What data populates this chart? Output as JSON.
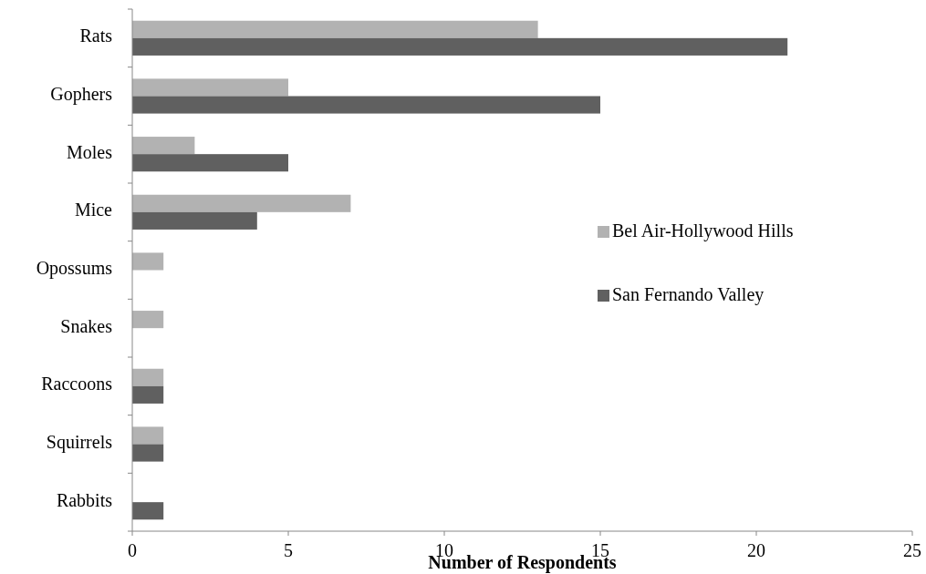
{
  "chart_data": {
    "type": "bar",
    "orientation": "horizontal",
    "xlabel": "Number of Respondents",
    "categories": [
      "Rats",
      "Gophers",
      "Moles",
      "Mice",
      "Opossums",
      "Snakes",
      "Raccoons",
      "Squirrels",
      "Rabbits"
    ],
    "series": [
      {
        "name": "Bel Air-Hollywood Hills",
        "color": "#b2b2b2",
        "values": [
          13,
          5,
          2,
          7,
          1,
          1,
          1,
          1,
          null
        ]
      },
      {
        "name": "San Fernando Valley",
        "color": "#606060",
        "values": [
          21,
          15,
          5,
          4,
          null,
          null,
          1,
          1,
          1
        ]
      }
    ],
    "xlim": [
      0,
      25
    ],
    "xticks": [
      0,
      5,
      10,
      15,
      20,
      25
    ],
    "grid": false,
    "legend": "right"
  }
}
